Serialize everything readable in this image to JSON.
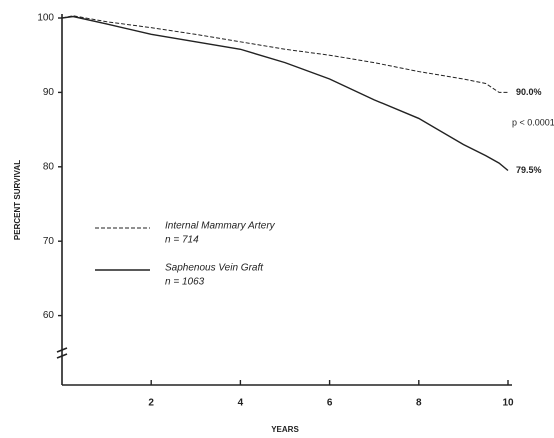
{
  "chart_data": {
    "type": "line",
    "x_label": "YEARS",
    "y_label": "PERCENT SURVIVAL",
    "x": [
      0,
      0.25,
      1,
      2,
      3,
      4,
      5,
      6,
      7,
      8,
      9,
      9.5,
      9.8,
      10
    ],
    "series": [
      {
        "name": "Internal Mammary Artery",
        "n": "n = 714",
        "color": "#222",
        "dash": true,
        "values": [
          100,
          100.3,
          99.5,
          98.7,
          97.8,
          96.8,
          95.8,
          95,
          94,
          92.8,
          91.8,
          91.2,
          90,
          90.0
        ],
        "value_labels": [
          null,
          null,
          null,
          null,
          null,
          null,
          null,
          null,
          null,
          null,
          null,
          null,
          null,
          "90.0%"
        ]
      },
      {
        "name": "Saphenous Vein Graft",
        "n": "n = 1063",
        "color": "#222",
        "dash": false,
        "values": [
          100,
          100.2,
          99.2,
          97.8,
          96.8,
          95.8,
          94,
          91.8,
          89,
          86.5,
          83,
          81.5,
          80.5,
          79.5
        ],
        "value_labels": [
          null,
          null,
          null,
          null,
          null,
          null,
          null,
          null,
          null,
          null,
          null,
          null,
          null,
          "79.5%"
        ]
      }
    ],
    "annotation": "p < 0.0001",
    "xlim": [
      0,
      10
    ],
    "xticks": [
      2,
      4,
      6,
      8,
      10
    ],
    "ylim": [
      50,
      100
    ],
    "yticks": [
      60,
      70,
      80,
      90,
      100
    ],
    "y_axis_break": true,
    "grid": false
  }
}
